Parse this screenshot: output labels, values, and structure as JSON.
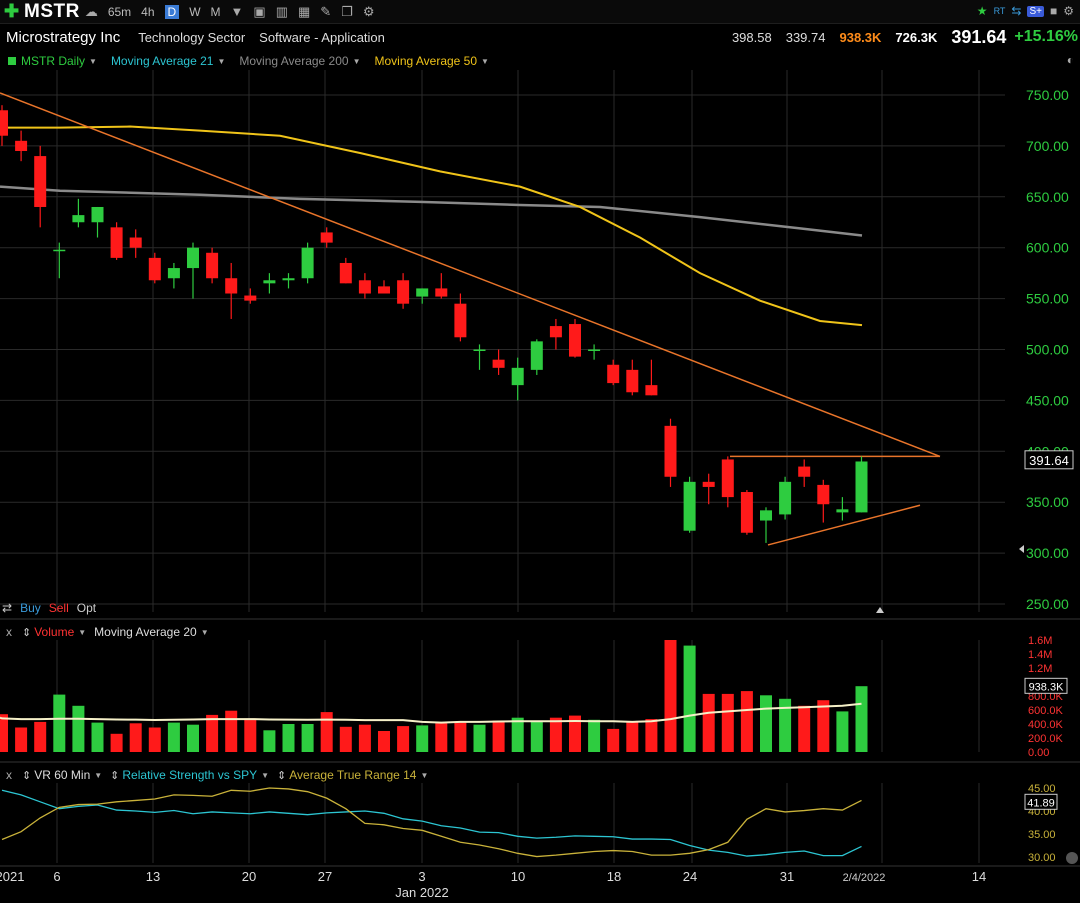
{
  "toolbar": {
    "symbol": "MSTR",
    "intervals": [
      {
        "label": "65m",
        "active": false
      },
      {
        "label": "4h",
        "active": false
      },
      {
        "label": "D",
        "active": true
      },
      {
        "label": "W",
        "active": false
      },
      {
        "label": "M",
        "active": false
      }
    ],
    "icons": [
      "plus-icon",
      "refresh-icon",
      "chart-type-icon",
      "bars-icon",
      "edit-icon",
      "draw-icon",
      "window-icon",
      "settings-icon"
    ],
    "right_icons": [
      "star-icon",
      "rt-icon",
      "share-icon",
      "save-icon",
      "gear-icon"
    ],
    "rt_label": "RT",
    "share_label": "S+"
  },
  "info": {
    "company": "Microstrategy Inc",
    "sector": "Technology Sector",
    "industry": "Software - Application",
    "high": "398.58",
    "low": "339.74",
    "volume": "938.3K",
    "avg_volume": "726.3K",
    "last": "391.64",
    "change": "+15.16%"
  },
  "legend": {
    "main": "MSTR Daily",
    "ma21": "Moving Average 21",
    "ma200": "Moving Average 200",
    "ma50": "Moving Average 50"
  },
  "trade": {
    "buy": "Buy",
    "sell": "Sell",
    "opt": "Opt"
  },
  "volume_panel": {
    "close": "x",
    "label": "Volume",
    "ma": "Moving Average 20",
    "price_tag": "938.3K"
  },
  "indicator_panel": {
    "close": "x",
    "vr": "VR 60 Min",
    "rs": "Relative Strength vs SPY",
    "atr": "Average True Range 14",
    "price_tag": "41.89"
  },
  "price_tag": "391.64",
  "colors": {
    "up": "#2ecc40",
    "down": "#ff1a1a",
    "ma200": "#8a8a8a",
    "ma50": "#f0c419",
    "trend": "#e8742a",
    "axis_price": "#2ecc40",
    "axis_vol": "#ff3333",
    "rs": "#2cc5d2",
    "atr": "#c9b23a"
  },
  "chart_data": [
    {
      "type": "candlestick",
      "title": "MSTR Daily",
      "ylim": [
        250,
        760
      ],
      "y_ticks": [
        "750.00",
        "700.00",
        "650.00",
        "600.00",
        "550.00",
        "500.00",
        "450.00",
        "400.00",
        "350.00",
        "300.00",
        "250.00"
      ],
      "y_tick_values": [
        750,
        700,
        650,
        600,
        550,
        500,
        450,
        400,
        350,
        300,
        250
      ],
      "candles": [
        [
          735,
          740,
          700,
          710
        ],
        [
          705,
          715,
          685,
          695
        ],
        [
          690,
          700,
          620,
          640
        ],
        [
          598,
          605,
          570,
          598
        ],
        [
          625,
          648,
          620,
          632
        ],
        [
          625,
          640,
          610,
          640
        ],
        [
          620,
          625,
          588,
          590
        ],
        [
          610,
          618,
          590,
          600
        ],
        [
          590,
          595,
          565,
          568
        ],
        [
          570,
          585,
          560,
          580
        ],
        [
          580,
          605,
          550,
          600
        ],
        [
          595,
          600,
          565,
          570
        ],
        [
          570,
          585,
          530,
          555
        ],
        [
          553,
          560,
          545,
          548
        ],
        [
          565,
          575,
          555,
          568
        ],
        [
          568,
          575,
          560,
          570
        ],
        [
          570,
          605,
          565,
          600
        ],
        [
          615,
          620,
          600,
          605
        ],
        [
          585,
          590,
          565,
          565
        ],
        [
          568,
          575,
          550,
          555
        ],
        [
          562,
          568,
          555,
          555
        ],
        [
          568,
          575,
          540,
          545
        ],
        [
          552,
          560,
          545,
          560
        ],
        [
          560,
          575,
          550,
          552
        ],
        [
          545,
          555,
          508,
          512
        ],
        [
          500,
          505,
          480,
          500
        ],
        [
          490,
          500,
          475,
          482
        ],
        [
          465,
          492,
          450,
          482
        ],
        [
          480,
          510,
          475,
          508
        ],
        [
          523,
          530,
          500,
          512
        ],
        [
          525,
          530,
          492,
          493
        ],
        [
          500,
          505,
          490,
          500
        ],
        [
          485,
          490,
          465,
          467
        ],
        [
          480,
          490,
          455,
          458
        ],
        [
          465,
          490,
          455,
          455
        ],
        [
          425,
          432,
          365,
          375
        ],
        [
          322,
          375,
          320,
          370
        ],
        [
          370,
          378,
          348,
          365
        ],
        [
          392,
          395,
          345,
          355
        ],
        [
          360,
          362,
          318,
          320
        ],
        [
          332,
          345,
          310,
          342
        ],
        [
          338,
          375,
          333,
          370
        ],
        [
          385,
          392,
          365,
          375
        ],
        [
          367,
          372,
          330,
          348
        ],
        [
          340,
          355,
          332,
          343
        ],
        [
          340,
          395,
          340,
          390
        ]
      ],
      "ma200": [
        [
          0,
          660
        ],
        [
          60,
          656
        ],
        [
          200,
          652
        ],
        [
          300,
          648
        ],
        [
          420,
          645
        ],
        [
          520,
          642
        ],
        [
          600,
          640
        ],
        [
          700,
          630
        ],
        [
          800,
          619
        ],
        [
          862,
          612
        ]
      ],
      "ma50": [
        [
          0,
          718
        ],
        [
          60,
          718
        ],
        [
          130,
          719
        ],
        [
          200,
          715
        ],
        [
          280,
          710
        ],
        [
          360,
          693
        ],
        [
          440,
          675
        ],
        [
          520,
          660
        ],
        [
          580,
          640
        ],
        [
          640,
          610
        ],
        [
          700,
          575
        ],
        [
          760,
          548
        ],
        [
          820,
          528
        ],
        [
          862,
          524
        ]
      ]
    },
    {
      "type": "bar",
      "title": "Volume",
      "y_ticks": [
        "1.6M",
        "1.4M",
        "1.2M",
        "938.3K",
        "800.0K",
        "600.0K",
        "400.0K",
        "200.0K",
        "0.00"
      ],
      "y_tick_values": [
        1600,
        1400,
        1200,
        938.3,
        800,
        600,
        400,
        200,
        0
      ],
      "values": [
        540,
        350,
        430,
        820,
        660,
        420,
        260,
        410,
        350,
        420,
        390,
        530,
        590,
        480,
        310,
        400,
        400,
        570,
        360,
        390,
        300,
        370,
        380,
        410,
        420,
        390,
        450,
        490,
        450,
        490,
        520,
        460,
        330,
        430,
        470,
        1600,
        1520,
        830,
        830,
        870,
        810,
        760,
        660,
        740,
        580,
        940
      ],
      "ma20": [
        480,
        470,
        470,
        475,
        475,
        470,
        465,
        462,
        458,
        460,
        465,
        470,
        470,
        470,
        465,
        462,
        460,
        462,
        460,
        455,
        455,
        455,
        430,
        420,
        430,
        430,
        435,
        440,
        440,
        440,
        442,
        440,
        440,
        430,
        440,
        470,
        520,
        560,
        580,
        600,
        620,
        630,
        640,
        650,
        660,
        690
      ]
    },
    {
      "type": "line",
      "title": "Indicators",
      "y_ticks": [
        "45.00",
        "41.89",
        "40.00",
        "35.00",
        "30.00"
      ],
      "y_tick_values": [
        45,
        41.89,
        40,
        35,
        30
      ],
      "series": [
        {
          "name": "Relative Strength vs SPY",
          "values": [
            44.5,
            43.5,
            42,
            40.5,
            41,
            41.3,
            40.2,
            40,
            39.7,
            40.1,
            39.4,
            39.8,
            39.6,
            39.4,
            39.8,
            39.5,
            39.2,
            39.6,
            39.8,
            40,
            39.5,
            38.3,
            37.8,
            36.8,
            36.3,
            35.4,
            35.3,
            34.5,
            34.1,
            34.3,
            34.6,
            34.5,
            34.4,
            33.9,
            33.9,
            33.8,
            32.5,
            31.5,
            31,
            30.2,
            30.5,
            31,
            31.3,
            30.3,
            30.3,
            32.3
          ]
        },
        {
          "name": "Average True Range 14",
          "values": [
            33.8,
            35.5,
            38.5,
            40.8,
            41.4,
            41.5,
            42,
            42.3,
            42.6,
            43.5,
            43.4,
            43.2,
            44.5,
            44.3,
            45,
            44.8,
            44.2,
            42.8,
            40.5,
            37.3,
            37,
            36.2,
            35.8,
            34.5,
            33.2,
            32.6,
            31.8,
            30.8,
            30.1,
            30.4,
            30.8,
            31.2,
            31.4,
            31.2,
            30.4,
            30.4,
            30.8,
            31.6,
            33.2,
            38.2,
            40.5,
            39.8,
            40.1,
            40.5,
            40.2,
            42.3
          ]
        }
      ]
    }
  ],
  "dates": {
    "labels": [
      "2021",
      "6",
      "13",
      "20",
      "27",
      "3",
      "10",
      "18",
      "24",
      "31",
      "2/4/2022",
      "14"
    ],
    "month": "Jan 2022"
  }
}
